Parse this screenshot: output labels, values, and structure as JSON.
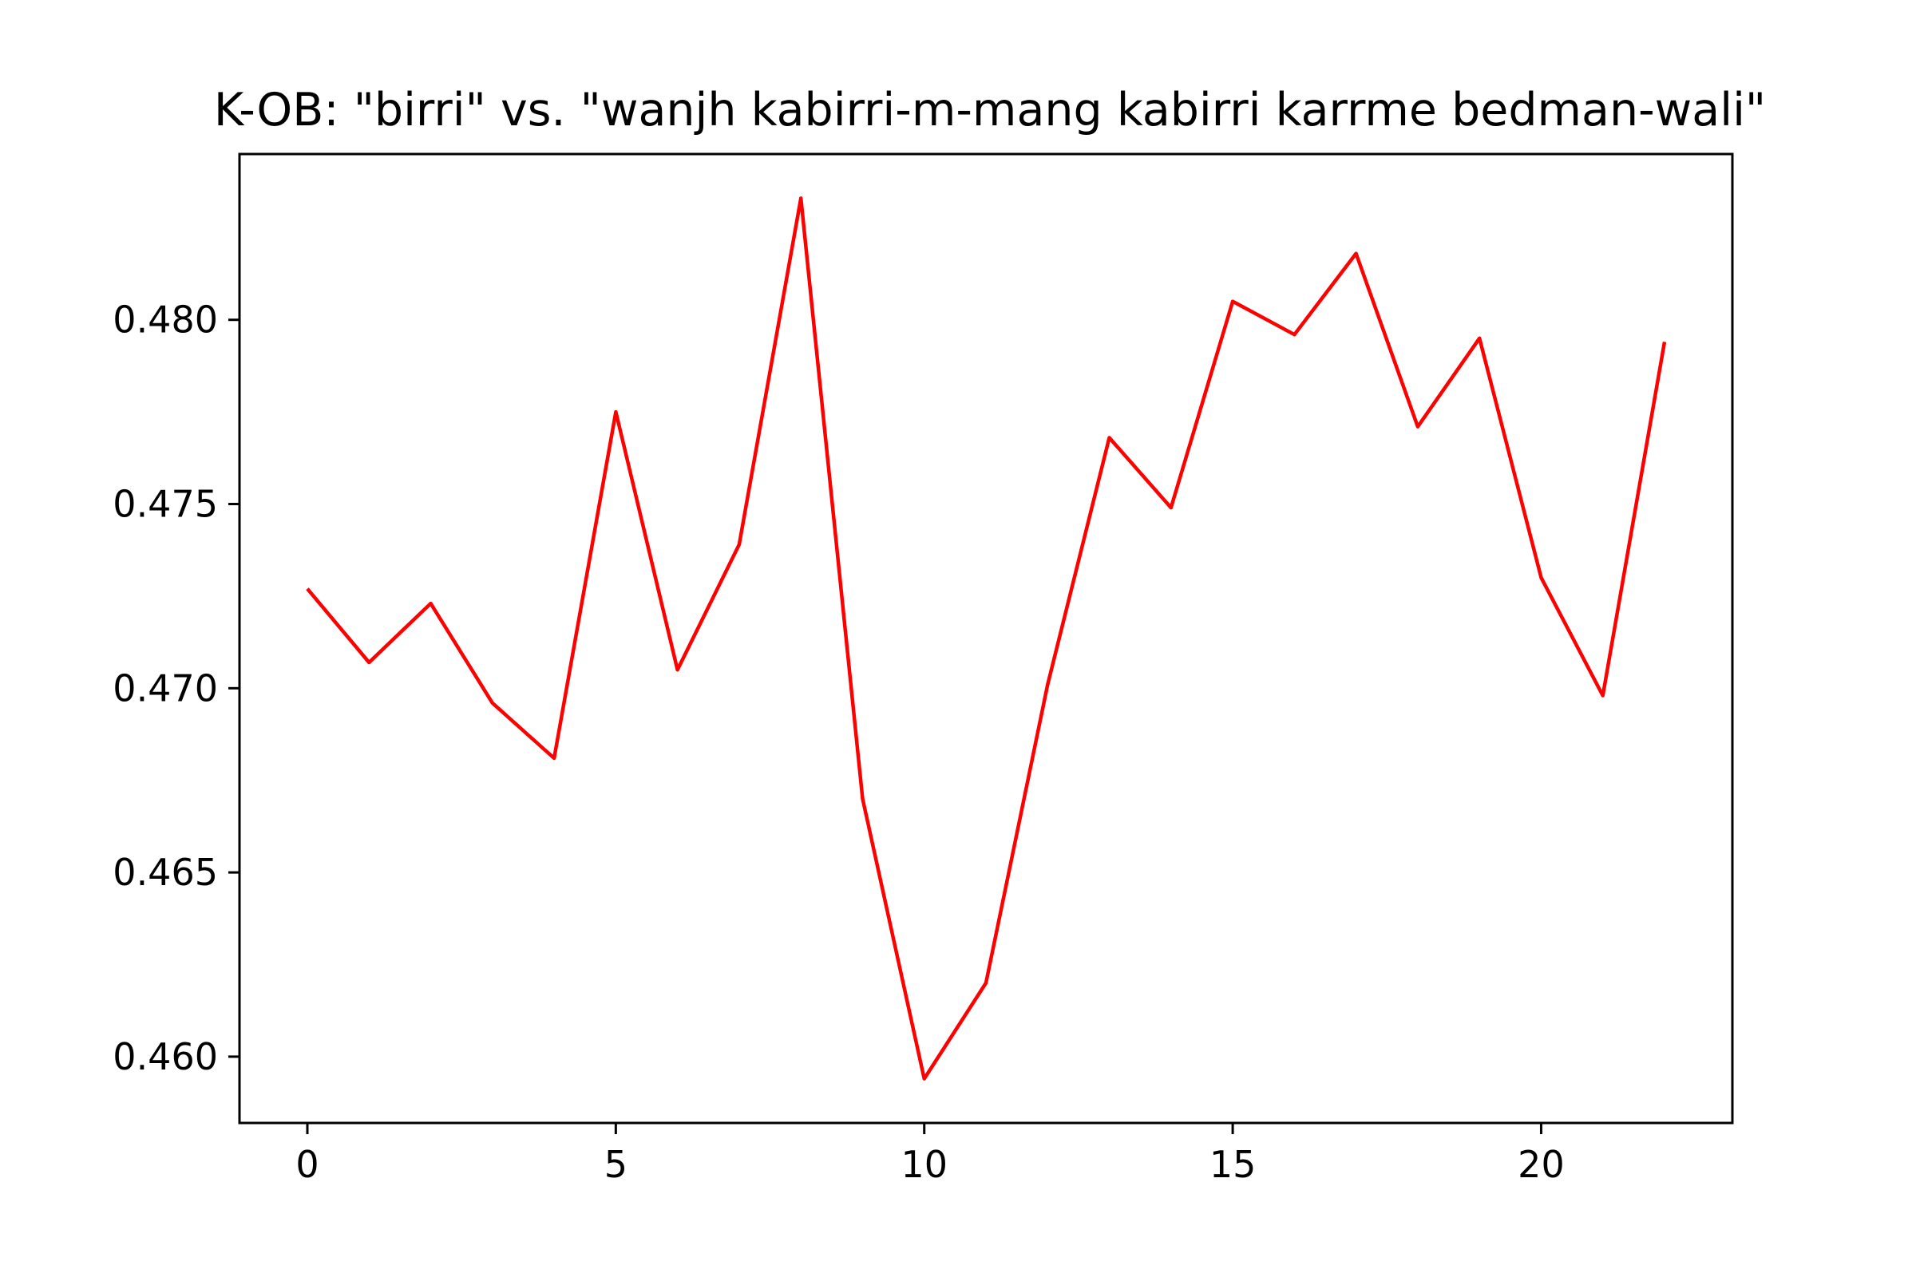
{
  "chart_data": {
    "type": "line",
    "title": "K-OB: \"birri\" vs. \"wanjh kabirri-m-mang kabirri karrme bedman-wali\"",
    "xlabel": "",
    "ylabel": "",
    "xlim": [
      -1.1,
      23.1
    ],
    "ylim": [
      0.4582,
      0.4845
    ],
    "x_ticks": [
      0,
      5,
      10,
      15,
      20
    ],
    "x_tick_labels": [
      "0",
      "5",
      "10",
      "15",
      "20"
    ],
    "y_ticks": [
      0.46,
      0.465,
      0.47,
      0.475,
      0.48
    ],
    "y_tick_labels": [
      "0.460",
      "0.465",
      "0.470",
      "0.475",
      "0.480"
    ],
    "grid": false,
    "series": [
      {
        "color": "#ff0000",
        "x": [
          0,
          1,
          2,
          3,
          4,
          5,
          6,
          7,
          8,
          9,
          10,
          11,
          12,
          13,
          14,
          15,
          16,
          17,
          18,
          19,
          20,
          21,
          22
        ],
        "values": [
          0.4727,
          0.4707,
          0.4723,
          0.4696,
          0.4681,
          0.4775,
          0.4705,
          0.4739,
          0.4833,
          0.467,
          0.4594,
          0.462,
          0.4701,
          0.4768,
          0.4749,
          0.4805,
          0.4796,
          0.4818,
          0.4771,
          0.4795,
          0.473,
          0.4698,
          0.4794
        ]
      }
    ]
  }
}
